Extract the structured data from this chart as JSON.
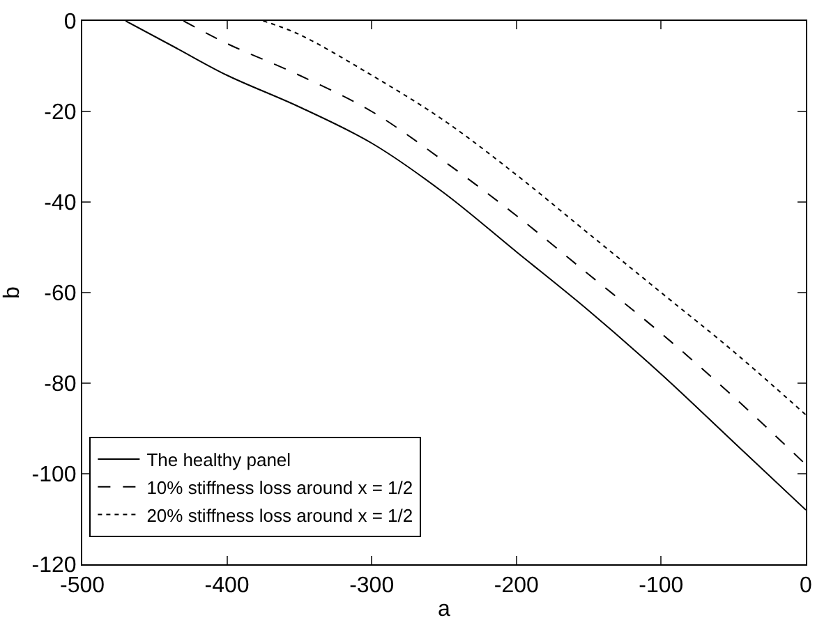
{
  "chart_data": {
    "type": "line",
    "xlabel": "a",
    "ylabel": "b",
    "xlim": [
      -500,
      0
    ],
    "ylim": [
      -120,
      0
    ],
    "xticks": [
      -500,
      -400,
      -300,
      -200,
      -100,
      0
    ],
    "yticks": [
      -120,
      -100,
      -80,
      -60,
      -40,
      -20,
      0
    ],
    "legend": "bottom left",
    "marker": "none",
    "series": [
      {
        "name": "The healthy panel",
        "color": "#000000",
        "line_style": "solid",
        "x": [
          -470,
          -435,
          -400,
          -350,
          -300,
          -250,
          -200,
          -150,
          -100,
          -50,
          0
        ],
        "values": [
          0,
          -6,
          -12,
          -19,
          -27,
          -38,
          -51,
          -64,
          -78,
          -93,
          -108
        ]
      },
      {
        "name": "10% stiffness loss around x = 1/2",
        "color": "#000000",
        "line_style": "dashed",
        "x": [
          -430,
          -400,
          -350,
          -300,
          -250,
          -200,
          -150,
          -100,
          -50,
          0
        ],
        "values": [
          0,
          -5,
          -12,
          -20,
          -31,
          -43,
          -56,
          -69,
          -83,
          -98
        ]
      },
      {
        "name": "20% stiffness loss around x = 1/2",
        "color": "#000000",
        "line_style": "dotted",
        "x": [
          -375,
          -350,
          -300,
          -250,
          -200,
          -150,
          -100,
          -50,
          0
        ],
        "values": [
          0,
          -3,
          -12,
          -22,
          -34,
          -47,
          -60,
          -73,
          -87
        ]
      }
    ]
  }
}
